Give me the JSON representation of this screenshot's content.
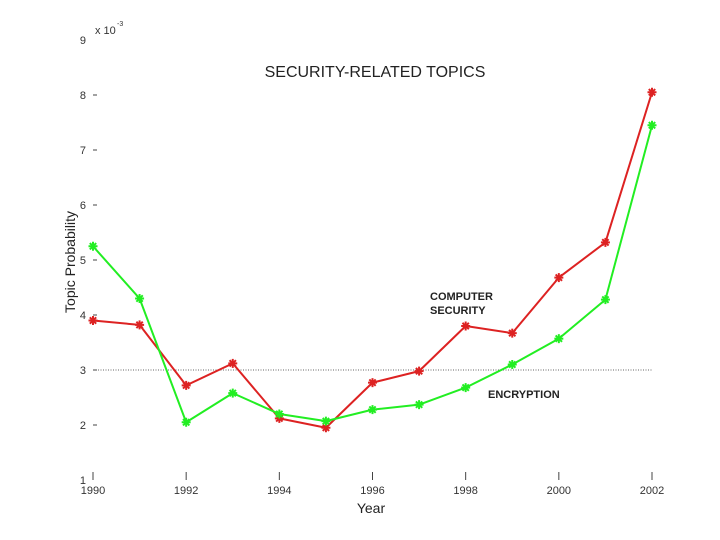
{
  "chart_data": {
    "type": "line",
    "title": "SECURITY-RELATED TOPICS",
    "xlabel": "Year",
    "ylabel": "Topic Probability",
    "exponent_label": "x 10",
    "exponent_power": "-3",
    "x": [
      1990,
      1991,
      1992,
      1993,
      1994,
      1995,
      1996,
      1997,
      1998,
      1999,
      2000,
      2001,
      2002
    ],
    "xticks": [
      1990,
      1992,
      1994,
      1996,
      1998,
      2000,
      2002
    ],
    "xlim": [
      1990,
      2002
    ],
    "yticks": [
      1,
      2,
      3,
      4,
      5,
      6,
      7,
      8,
      9
    ],
    "ylim": [
      1,
      9
    ],
    "reference_line": 3,
    "series": [
      {
        "name": "COMPUTER SECURITY",
        "color": "#dd2222",
        "values": [
          3.9,
          3.82,
          2.72,
          3.12,
          2.12,
          1.95,
          2.77,
          2.98,
          3.8,
          3.67,
          4.68,
          5.32,
          8.05
        ]
      },
      {
        "name": "ENCRYPTION",
        "color": "#22ee22",
        "values": [
          5.25,
          4.3,
          2.05,
          2.58,
          2.2,
          2.07,
          2.28,
          2.37,
          2.68,
          3.1,
          3.57,
          4.28,
          7.45
        ]
      }
    ],
    "annotations": [
      {
        "lines": [
          "COMPUTER",
          "SECURITY"
        ],
        "series": "COMPUTER SECURITY"
      },
      {
        "lines": [
          "ENCRYPTION"
        ],
        "series": "ENCRYPTION"
      }
    ]
  }
}
